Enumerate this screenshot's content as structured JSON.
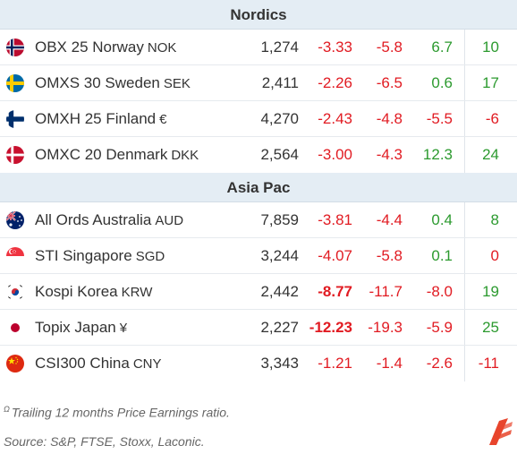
{
  "sections": [
    {
      "title": "Nordics",
      "rows": [
        {
          "flag": "norway-flag-icon",
          "name": "OBX 25 Norway",
          "ccy": "NOK",
          "v1": "1,274",
          "v2": "-3.33",
          "v3": "-5.8",
          "v4": "6.7",
          "v5": "10"
        },
        {
          "flag": "sweden-flag-icon",
          "name": "OMXS 30 Sweden",
          "ccy": "SEK",
          "v1": "2,411",
          "v2": "-2.26",
          "v3": "-6.5",
          "v4": "0.6",
          "v5": "17"
        },
        {
          "flag": "finland-flag-icon",
          "name": "OMXH 25 Finland",
          "ccy": "€",
          "v1": "4,270",
          "v2": "-2.43",
          "v3": "-4.8",
          "v4": "-5.5",
          "v5": "-6"
        },
        {
          "flag": "denmark-flag-icon",
          "name": "OMXC 20 Denmark",
          "ccy": "DKK",
          "v1": "2,564",
          "v2": "-3.00",
          "v3": "-4.3",
          "v4": "12.3",
          "v5": "24"
        }
      ]
    },
    {
      "title": "Asia Pac",
      "rows": [
        {
          "flag": "australia-flag-icon",
          "name": "All Ords Australia",
          "ccy": "AUD",
          "v1": "7,859",
          "v2": "-3.81",
          "v3": "-4.4",
          "v4": "0.4",
          "v5": "8"
        },
        {
          "flag": "singapore-flag-icon",
          "name": "STI Singapore",
          "ccy": "SGD",
          "v1": "3,244",
          "v2": "-4.07",
          "v3": "-5.8",
          "v4": "0.1",
          "v5": "0"
        },
        {
          "flag": "korea-flag-icon",
          "name": "Kospi Korea",
          "ccy": "KRW",
          "v1": "2,442",
          "v2": "-8.77",
          "v3": "-11.7",
          "v4": "-8.0",
          "v5": "19"
        },
        {
          "flag": "japan-flag-icon",
          "name": "Topix Japan",
          "ccy": "¥",
          "v1": "2,227",
          "v2": "-12.23",
          "v3": "-19.3",
          "v4": "-5.9",
          "v5": "25"
        },
        {
          "flag": "china-flag-icon",
          "name": "CSI300 China",
          "ccy": "CNY",
          "v1": "3,343",
          "v2": "-1.21",
          "v3": "-1.4",
          "v4": "-2.6",
          "v5": "-11"
        }
      ]
    }
  ],
  "footnote": {
    "marker": "Ω",
    "text": "Trailing 12 months Price Earnings ratio."
  },
  "source": "Source: S&P, FTSE, Stoxx, Laconic.",
  "logo_icon": "laconic-logo-icon",
  "colors": {
    "header_bg": "#e4edf4",
    "negative": "#e11b22",
    "positive": "#2c9a2f",
    "logo": "#e8452c"
  }
}
